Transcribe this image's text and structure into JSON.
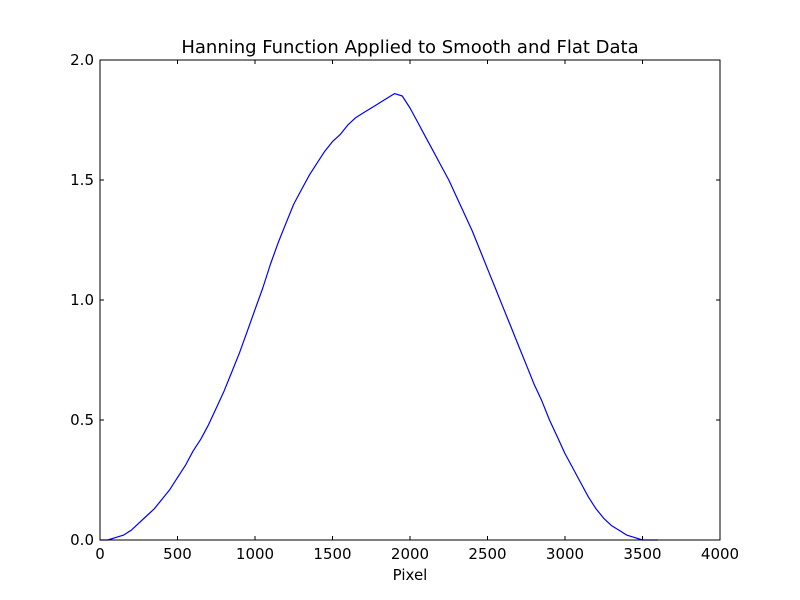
{
  "chart_data": {
    "type": "line",
    "title": "Hanning Function Applied to Smooth and Flat Data",
    "xlabel": "Pixel",
    "ylabel": "",
    "xlim": [
      0,
      4000
    ],
    "ylim": [
      0,
      2.0
    ],
    "xticks": [
      0,
      500,
      1000,
      1500,
      2000,
      2500,
      3000,
      3500,
      4000
    ],
    "yticks": [
      0.0,
      0.5,
      1.0,
      1.5,
      2.0
    ],
    "xtick_labels": [
      "0",
      "500",
      "1000",
      "1500",
      "2000",
      "2500",
      "3000",
      "3500",
      "4000"
    ],
    "ytick_labels": [
      "0.0",
      "0.5",
      "1.0",
      "1.5",
      "2.0"
    ],
    "grid": false,
    "legend": "none",
    "line_color": "#0000ff",
    "series": [
      {
        "x": [
          0,
          50,
          100,
          150,
          200,
          250,
          300,
          350,
          400,
          450,
          500,
          550,
          600,
          650,
          700,
          750,
          800,
          850,
          900,
          950,
          1000,
          1050,
          1100,
          1150,
          1200,
          1250,
          1300,
          1350,
          1400,
          1450,
          1500,
          1550,
          1600,
          1650,
          1700,
          1750,
          1800,
          1850,
          1900,
          1950,
          2000,
          2050,
          2100,
          2150,
          2200,
          2250,
          2300,
          2350,
          2400,
          2450,
          2500,
          2550,
          2600,
          2650,
          2700,
          2750,
          2800,
          2850,
          2900,
          2950,
          3000,
          3050,
          3100,
          3150,
          3200,
          3250,
          3300,
          3350,
          3400,
          3450,
          3500,
          3550,
          3600
        ],
        "y": [
          0.0,
          0.0,
          0.01,
          0.02,
          0.04,
          0.07,
          0.1,
          0.13,
          0.17,
          0.21,
          0.26,
          0.31,
          0.37,
          0.42,
          0.48,
          0.55,
          0.62,
          0.7,
          0.78,
          0.87,
          0.96,
          1.05,
          1.15,
          1.24,
          1.32,
          1.4,
          1.46,
          1.52,
          1.57,
          1.62,
          1.66,
          1.69,
          1.73,
          1.76,
          1.78,
          1.8,
          1.82,
          1.84,
          1.86,
          1.85,
          1.8,
          1.74,
          1.68,
          1.62,
          1.56,
          1.5,
          1.43,
          1.36,
          1.29,
          1.21,
          1.13,
          1.05,
          0.97,
          0.89,
          0.81,
          0.73,
          0.65,
          0.58,
          0.5,
          0.43,
          0.36,
          0.3,
          0.24,
          0.18,
          0.13,
          0.09,
          0.06,
          0.04,
          0.02,
          0.01,
          0.0,
          0.0,
          0.0
        ]
      }
    ]
  }
}
